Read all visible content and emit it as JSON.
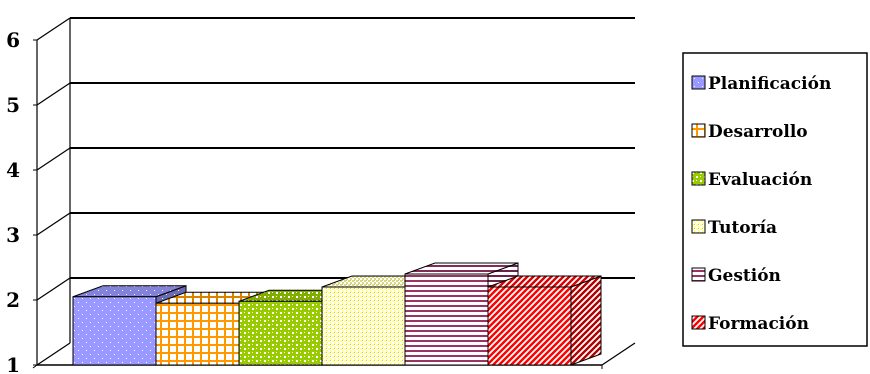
{
  "chart_data": {
    "type": "bar",
    "title": "",
    "xlabel": "",
    "ylabel": "",
    "ylim": [
      1,
      6
    ],
    "yticks": [
      1,
      2,
      3,
      4,
      5,
      6
    ],
    "grid": true,
    "legend_position": "right",
    "series": [
      {
        "name": "Planificación",
        "value": 2.05,
        "color": "#9999ff",
        "pattern": "dots"
      },
      {
        "name": "Desarrollo",
        "value": 1.95,
        "color": "#ff9900",
        "pattern": "grid"
      },
      {
        "name": "Evaluación",
        "value": 1.98,
        "color": "#99cc00",
        "pattern": "checker"
      },
      {
        "name": "Tutoría",
        "value": 2.2,
        "color": "#ffff99",
        "pattern": "fine"
      },
      {
        "name": "Gestión",
        "value": 2.4,
        "color": "#993366",
        "pattern": "hlines"
      },
      {
        "name": "Formación",
        "value": 2.2,
        "color": "#ff0000",
        "pattern": "diag"
      }
    ]
  }
}
